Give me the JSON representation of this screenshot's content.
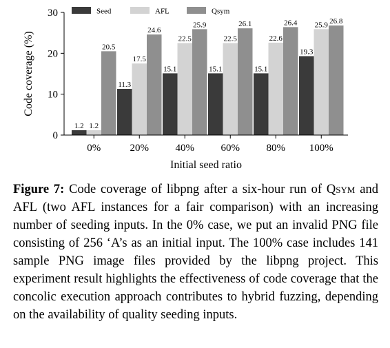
{
  "chart_data": {
    "type": "bar",
    "categories": [
      "0%",
      "20%",
      "40%",
      "60%",
      "80%",
      "100%"
    ],
    "series": [
      {
        "name": "Seed",
        "color": "#3a3a3a",
        "values": [
          1.2,
          11.3,
          15.1,
          15.1,
          15.1,
          19.3
        ]
      },
      {
        "name": "AFL",
        "color": "#d3d3d3",
        "values": [
          1.2,
          17.5,
          22.5,
          22.5,
          22.6,
          25.9
        ]
      },
      {
        "name": "Qsym",
        "color": "#8f8f8f",
        "values": [
          20.5,
          24.6,
          25.9,
          26.1,
          26.4,
          26.8
        ]
      }
    ],
    "xlabel": "Initial seed ratio",
    "ylabel": "Code coverage (%)",
    "ylim": [
      0,
      30
    ],
    "yticks": [
      0,
      10,
      20,
      30
    ],
    "legend_position": "top",
    "grid": false
  },
  "caption": {
    "label": "Figure 7:",
    "part1": " Code coverage of libpng after a six-hour run of ",
    "qsym": "Qsym",
    "part2": " and AFL (two AFL instances for a fair comparison) with an increasing number of seeding inputs. In the 0% case, we put an invalid PNG file consisting of 256 ‘A’s as an initial input. The 100% case includes 141 sample PNG image files provided by the libpng project. This experiment result highlights the effectiveness of code coverage that the concolic execution approach contributes to hybrid fuzzing, depending on the availability of quality seeding inputs."
  }
}
